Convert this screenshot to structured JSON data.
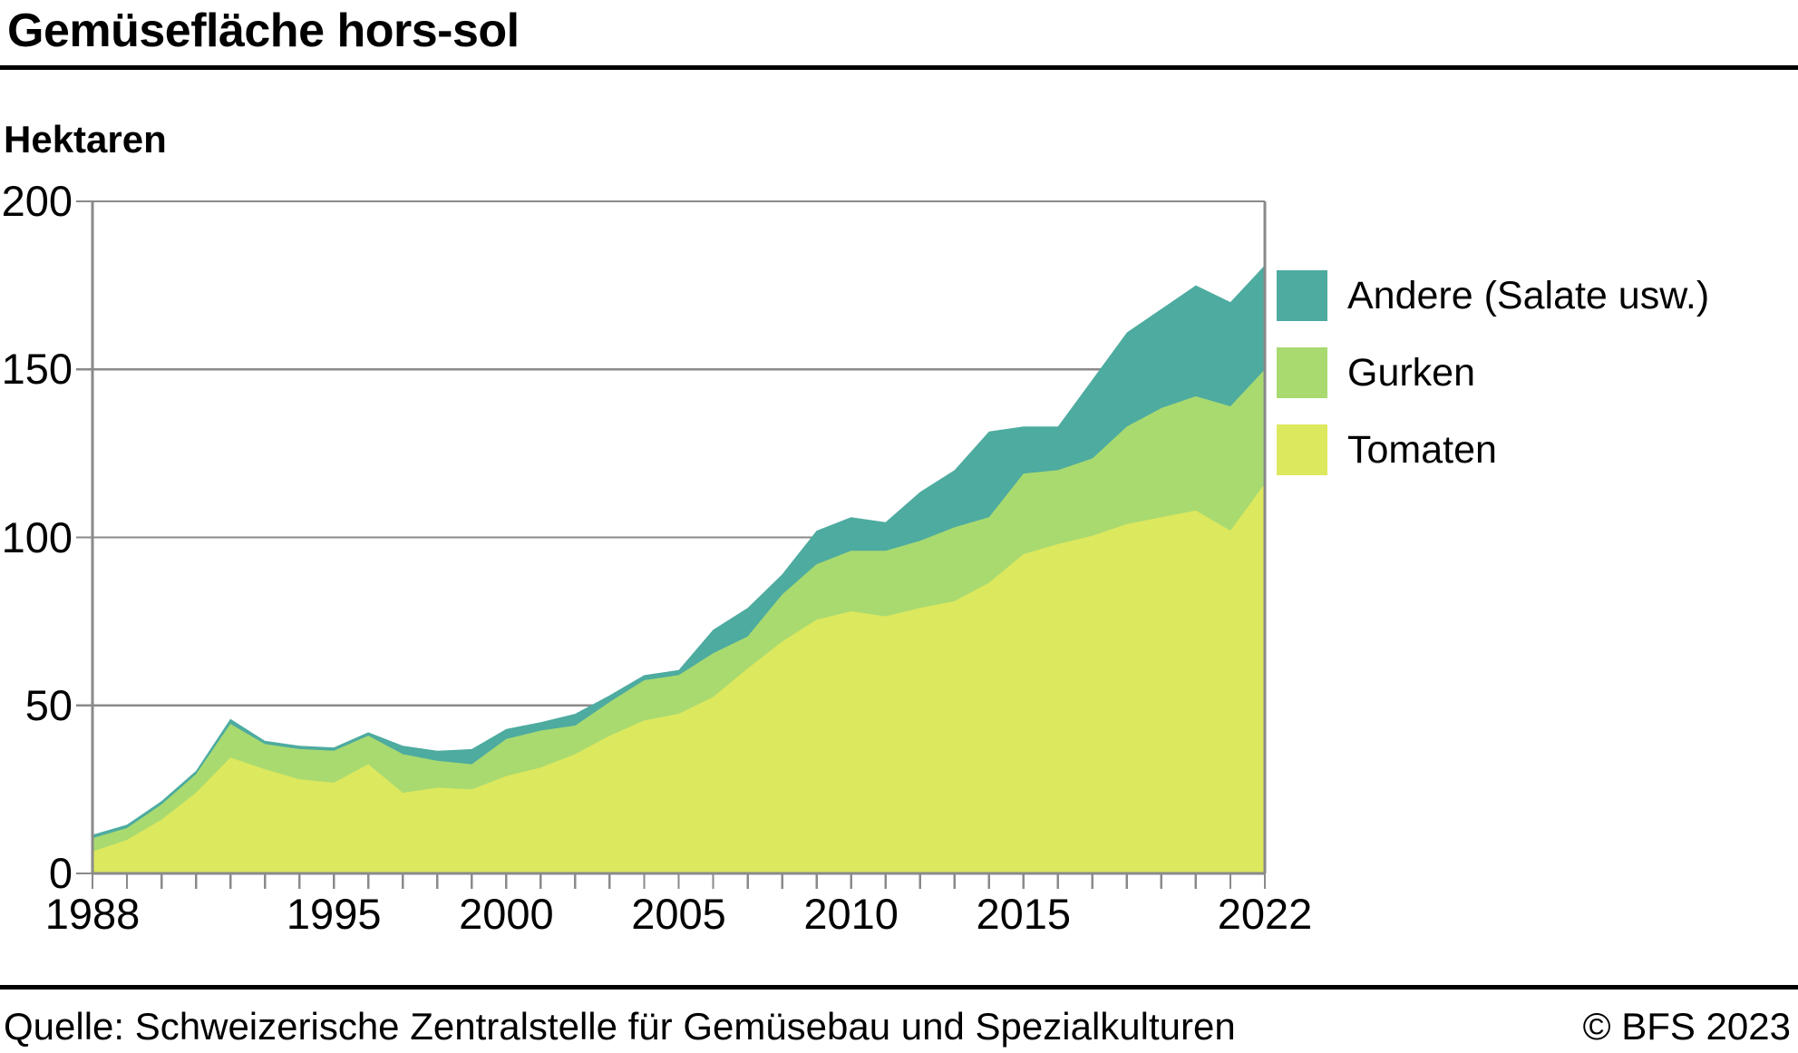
{
  "header": {
    "title": "Gemüsefläche hors-sol",
    "y_axis_title": "Hektaren"
  },
  "legend": {
    "items": [
      {
        "label": "Andere (Salate usw.)",
        "color": "#4daba0"
      },
      {
        "label": "Gurken",
        "color": "#a9da70"
      },
      {
        "label": "Tomaten",
        "color": "#dce85e"
      }
    ]
  },
  "footer": {
    "source": "Quelle: Schweizerische Zentralstelle für Gemüsebau und Spezialkulturen",
    "copyright": "© BFS 2023"
  },
  "colors": {
    "background": "#ffffff",
    "grid": "#8a8a8a",
    "text": "#000000"
  },
  "chart_data": {
    "type": "area",
    "stacked": true,
    "title": "Gemüsefläche hors-sol",
    "ylabel": "Hektaren",
    "unit": "Hektaren",
    "ylim": [
      0,
      200
    ],
    "xlim": [
      1988,
      2022
    ],
    "grid": "horizontal",
    "legend_position": "right",
    "y_ticks": [
      0,
      50,
      100,
      150,
      200
    ],
    "x_tick_years": [
      1988,
      1995,
      2000,
      2005,
      2010,
      2015,
      2022
    ],
    "x": [
      1988,
      1989,
      1990,
      1991,
      1992,
      1993,
      1994,
      1995,
      1996,
      1997,
      1998,
      1999,
      2000,
      2001,
      2002,
      2003,
      2004,
      2005,
      2006,
      2007,
      2008,
      2009,
      2010,
      2011,
      2012,
      2013,
      2014,
      2015,
      2016,
      2017,
      2018,
      2019,
      2020,
      2021,
      2022
    ],
    "series": [
      {
        "name": "Tomaten",
        "color": "#dce85e",
        "values": [
          6.5,
          10,
          16,
          24,
          34.5,
          31,
          28,
          27,
          32.5,
          24,
          25.5,
          25,
          29,
          31.5,
          35.5,
          41,
          45.5,
          47.5,
          52.5,
          61,
          69,
          75.5,
          78,
          76.5,
          79,
          81,
          86.5,
          95,
          98,
          100.5,
          104,
          106,
          108,
          102,
          116
        ]
      },
      {
        "name": "Gurken",
        "color": "#a9da70",
        "values": [
          4,
          3.5,
          4.5,
          5.5,
          10,
          7.5,
          9,
          9.5,
          8.5,
          11.5,
          8,
          7.5,
          11,
          11,
          8.5,
          10,
          12,
          11.5,
          13,
          9.5,
          14,
          16.5,
          18,
          19.5,
          20,
          22,
          19.5,
          24,
          22,
          23,
          29,
          32.5,
          34,
          37,
          34
        ]
      },
      {
        "name": "Andere (Salate usw.)",
        "color": "#4daba0",
        "values": [
          1,
          1,
          1,
          1,
          1.5,
          1,
          1,
          1,
          1,
          2.5,
          3,
          4.5,
          3,
          2.5,
          3.5,
          2,
          1.5,
          1.5,
          7,
          8.5,
          6,
          10,
          10,
          8.5,
          14.5,
          17,
          25.5,
          14,
          13,
          23.5,
          28,
          29.5,
          33,
          31,
          31
        ]
      }
    ]
  }
}
